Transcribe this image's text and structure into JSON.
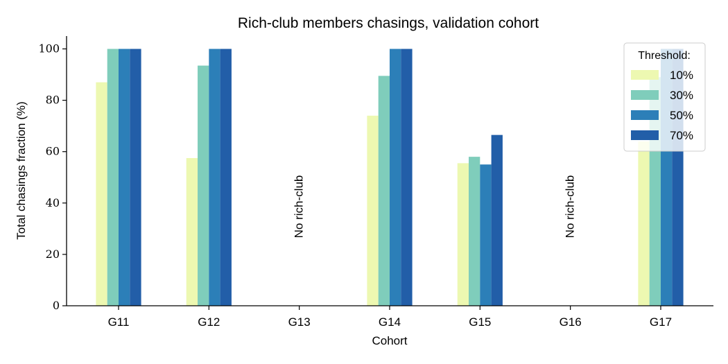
{
  "chart_data": {
    "type": "bar",
    "title": "Rich-club members chasings, validation cohort",
    "xlabel": "Cohort",
    "ylabel": "Total chasings fraction (%)",
    "ylim": [
      0,
      105
    ],
    "yticks": [
      "0",
      "20",
      "40",
      "60",
      "80",
      "100"
    ],
    "grid": false,
    "categories": [
      "G11",
      "G12",
      "G13",
      "G14",
      "G15",
      "G16",
      "G17"
    ],
    "series": [
      {
        "name": "10%",
        "color": "#edf8b1",
        "values": [
          87,
          57.5,
          null,
          74,
          55.5,
          null,
          64
        ]
      },
      {
        "name": "30%",
        "color": "#7fcdbb",
        "values": [
          100,
          93.5,
          null,
          89.5,
          58,
          null,
          89
        ]
      },
      {
        "name": "50%",
        "color": "#2c7fb8",
        "values": [
          100,
          100,
          null,
          100,
          55,
          null,
          100
        ]
      },
      {
        "name": "70%",
        "color": "#225ea8",
        "values": [
          100,
          100,
          null,
          100,
          66.5,
          null,
          100
        ]
      }
    ],
    "annotations": [
      {
        "category": "G13",
        "text": "No rich-club"
      },
      {
        "category": "G16",
        "text": "No rich-club"
      }
    ],
    "legend": {
      "title": "Threshold:",
      "placement": "top-right"
    }
  }
}
